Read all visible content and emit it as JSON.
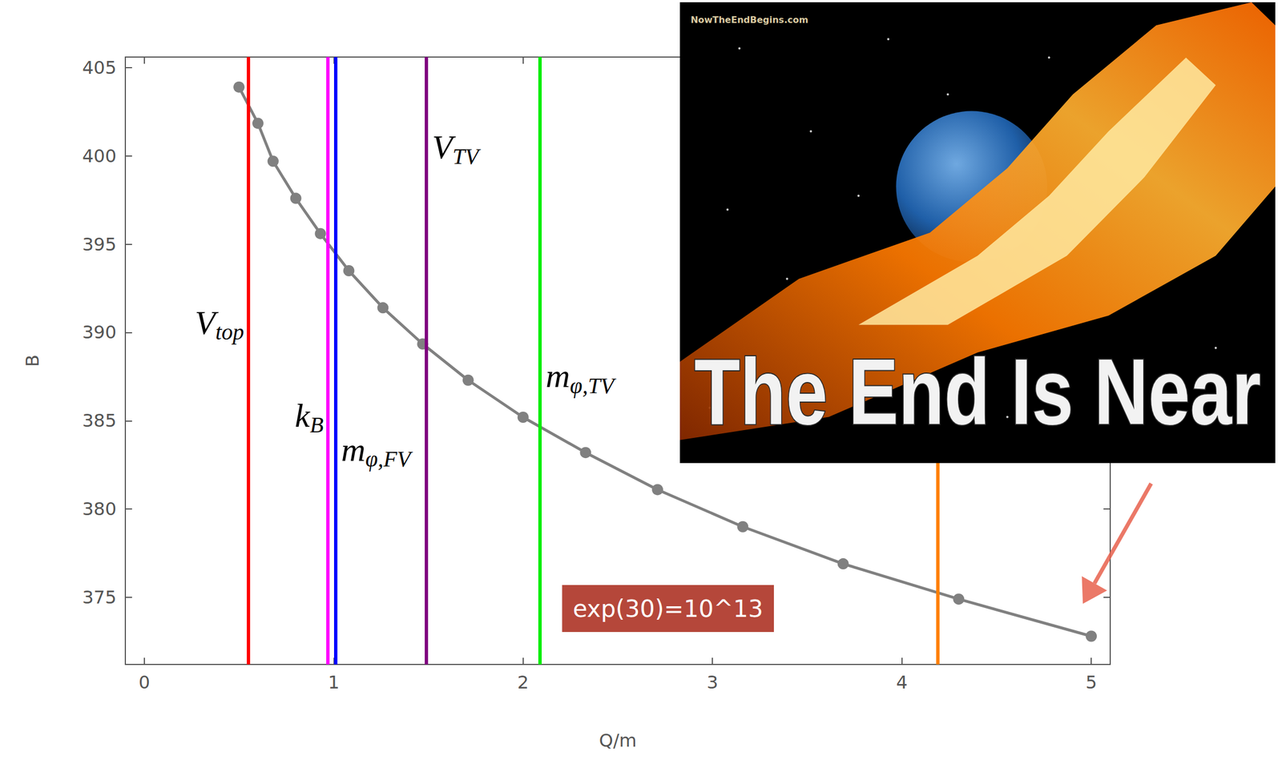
{
  "chart_data": {
    "type": "line",
    "x_label": "Q/m",
    "y_label": "B",
    "x": [
      0.5,
      0.6,
      0.68,
      0.8,
      0.93,
      1.08,
      1.26,
      1.47,
      1.71,
      2.0,
      2.33,
      2.71,
      3.16,
      3.69,
      4.3,
      5.0
    ],
    "values": [
      403.9,
      401.85,
      399.7,
      397.6,
      395.6,
      393.5,
      391.4,
      389.35,
      387.3,
      385.2,
      383.2,
      381.1,
      379.0,
      376.9,
      374.9,
      372.8
    ],
    "color": "#808080",
    "marker": "circle",
    "xlim": [
      -0.1,
      5.1
    ],
    "ylim": [
      371.2,
      405.6
    ],
    "xticks": [
      0,
      1,
      2,
      3,
      4,
      5
    ],
    "yticks": [
      375,
      380,
      385,
      390,
      395,
      400,
      405
    ],
    "grid": false,
    "vlines": [
      {
        "x": 0.55,
        "color": "#ff0000",
        "label": "V",
        "sub": "top"
      },
      {
        "x": 0.97,
        "color": "#ff00ff",
        "label": "k",
        "sub": "B"
      },
      {
        "x": 1.01,
        "color": "#0000ff",
        "label": "m",
        "sub": "φ,FV"
      },
      {
        "x": 1.49,
        "color": "#800080",
        "label": "V",
        "sub": "TV"
      },
      {
        "x": 2.09,
        "color": "#00ee00",
        "label": "m",
        "sub": "φ,TV"
      },
      {
        "x": 4.19,
        "color": "#ff8000"
      }
    ],
    "annotation": "exp(30)=10^13",
    "inset": {
      "text": "The End Is Near",
      "credit": "NowTheEndBegins.com"
    }
  }
}
